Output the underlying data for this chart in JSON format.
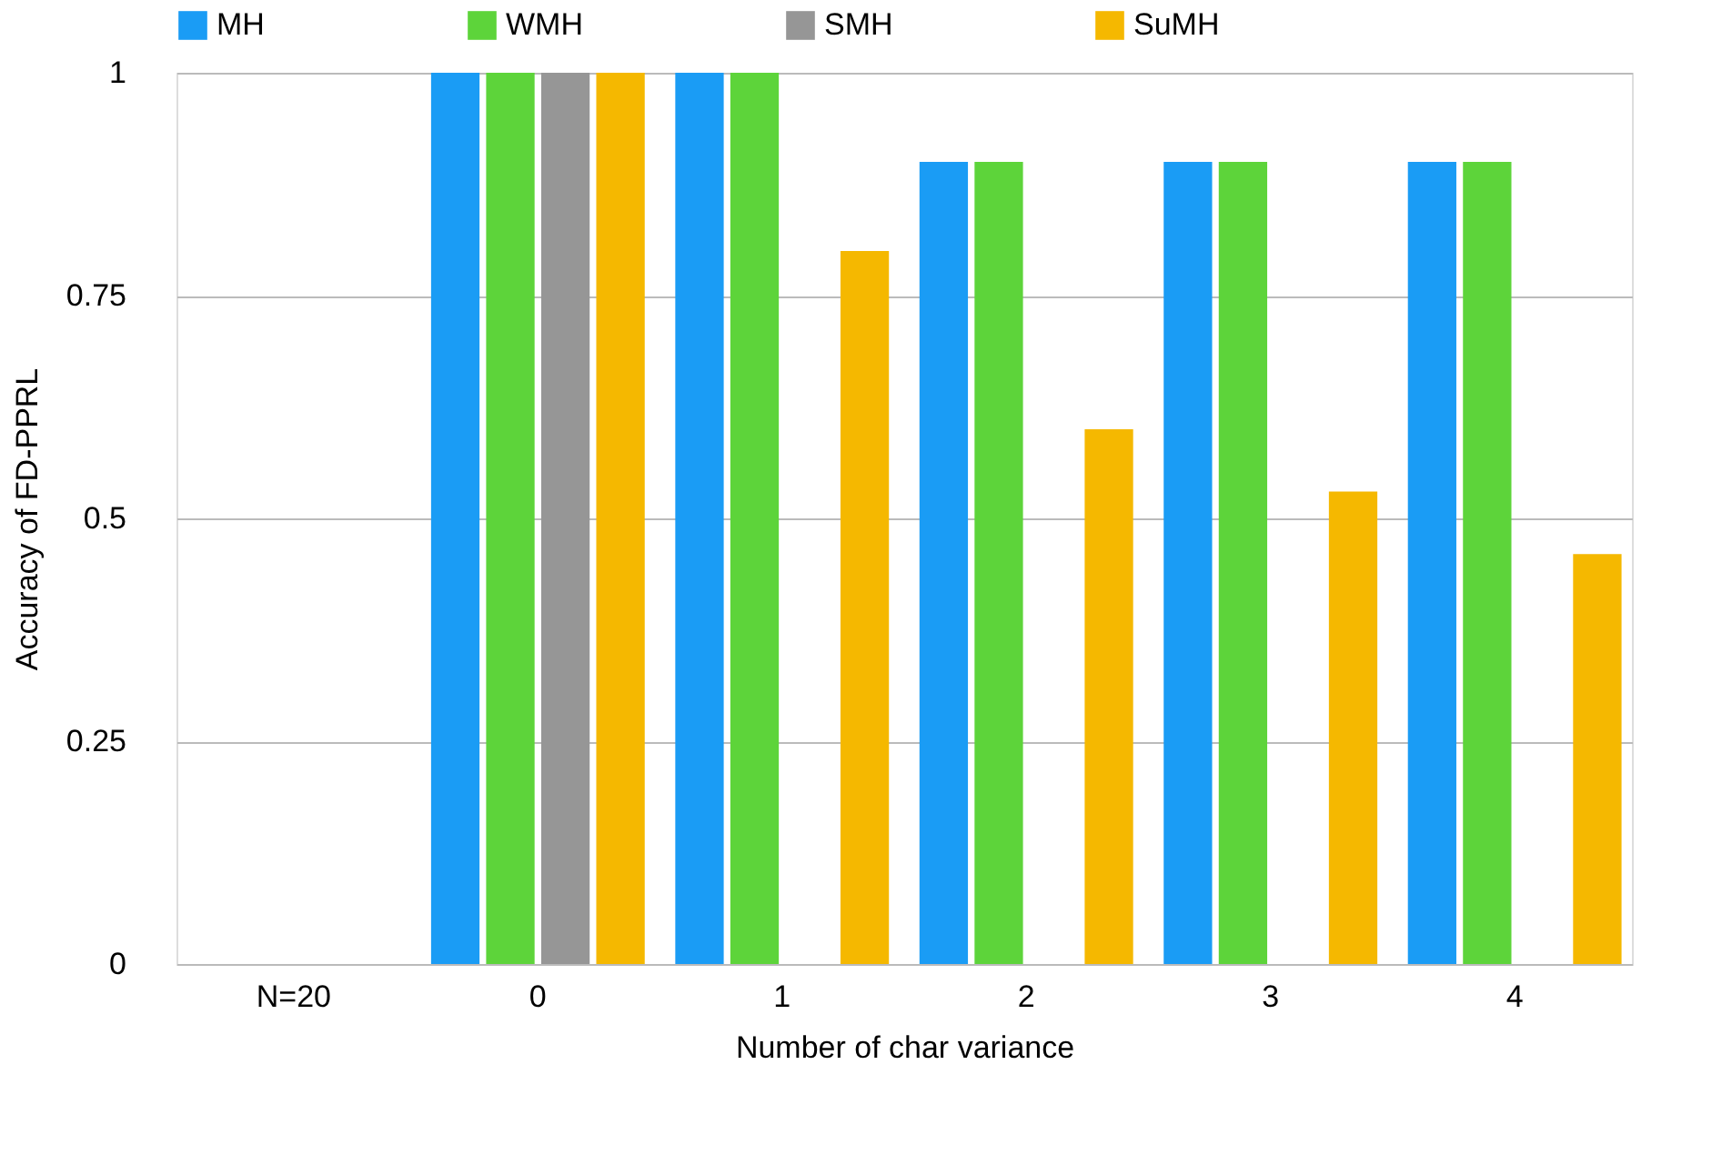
{
  "chart_data": {
    "type": "bar",
    "xlabel": "Number of char variance",
    "ylabel": "Accuracy of FD-PPRL",
    "categories": [
      "N=20",
      "0",
      "1",
      "2",
      "3",
      "4"
    ],
    "series": [
      {
        "name": "MH",
        "color": "#1a9cf5",
        "values": [
          0,
          1,
          1,
          0.9,
          0.9,
          0.9
        ]
      },
      {
        "name": "WMH",
        "color": "#5dd43a",
        "values": [
          0,
          1,
          1,
          0.9,
          0.9,
          0.9
        ]
      },
      {
        "name": "SMH",
        "color": "#969696",
        "values": [
          0,
          1,
          0,
          0,
          0,
          0
        ]
      },
      {
        "name": "SuMH",
        "color": "#f5b800",
        "values": [
          0,
          1,
          0.8,
          0.6,
          0.53,
          0.46
        ]
      }
    ],
    "ylim": [
      0,
      1
    ],
    "yticks": [
      0,
      0.25,
      0.5,
      0.75,
      1
    ],
    "grid": "y",
    "legend": "top"
  }
}
